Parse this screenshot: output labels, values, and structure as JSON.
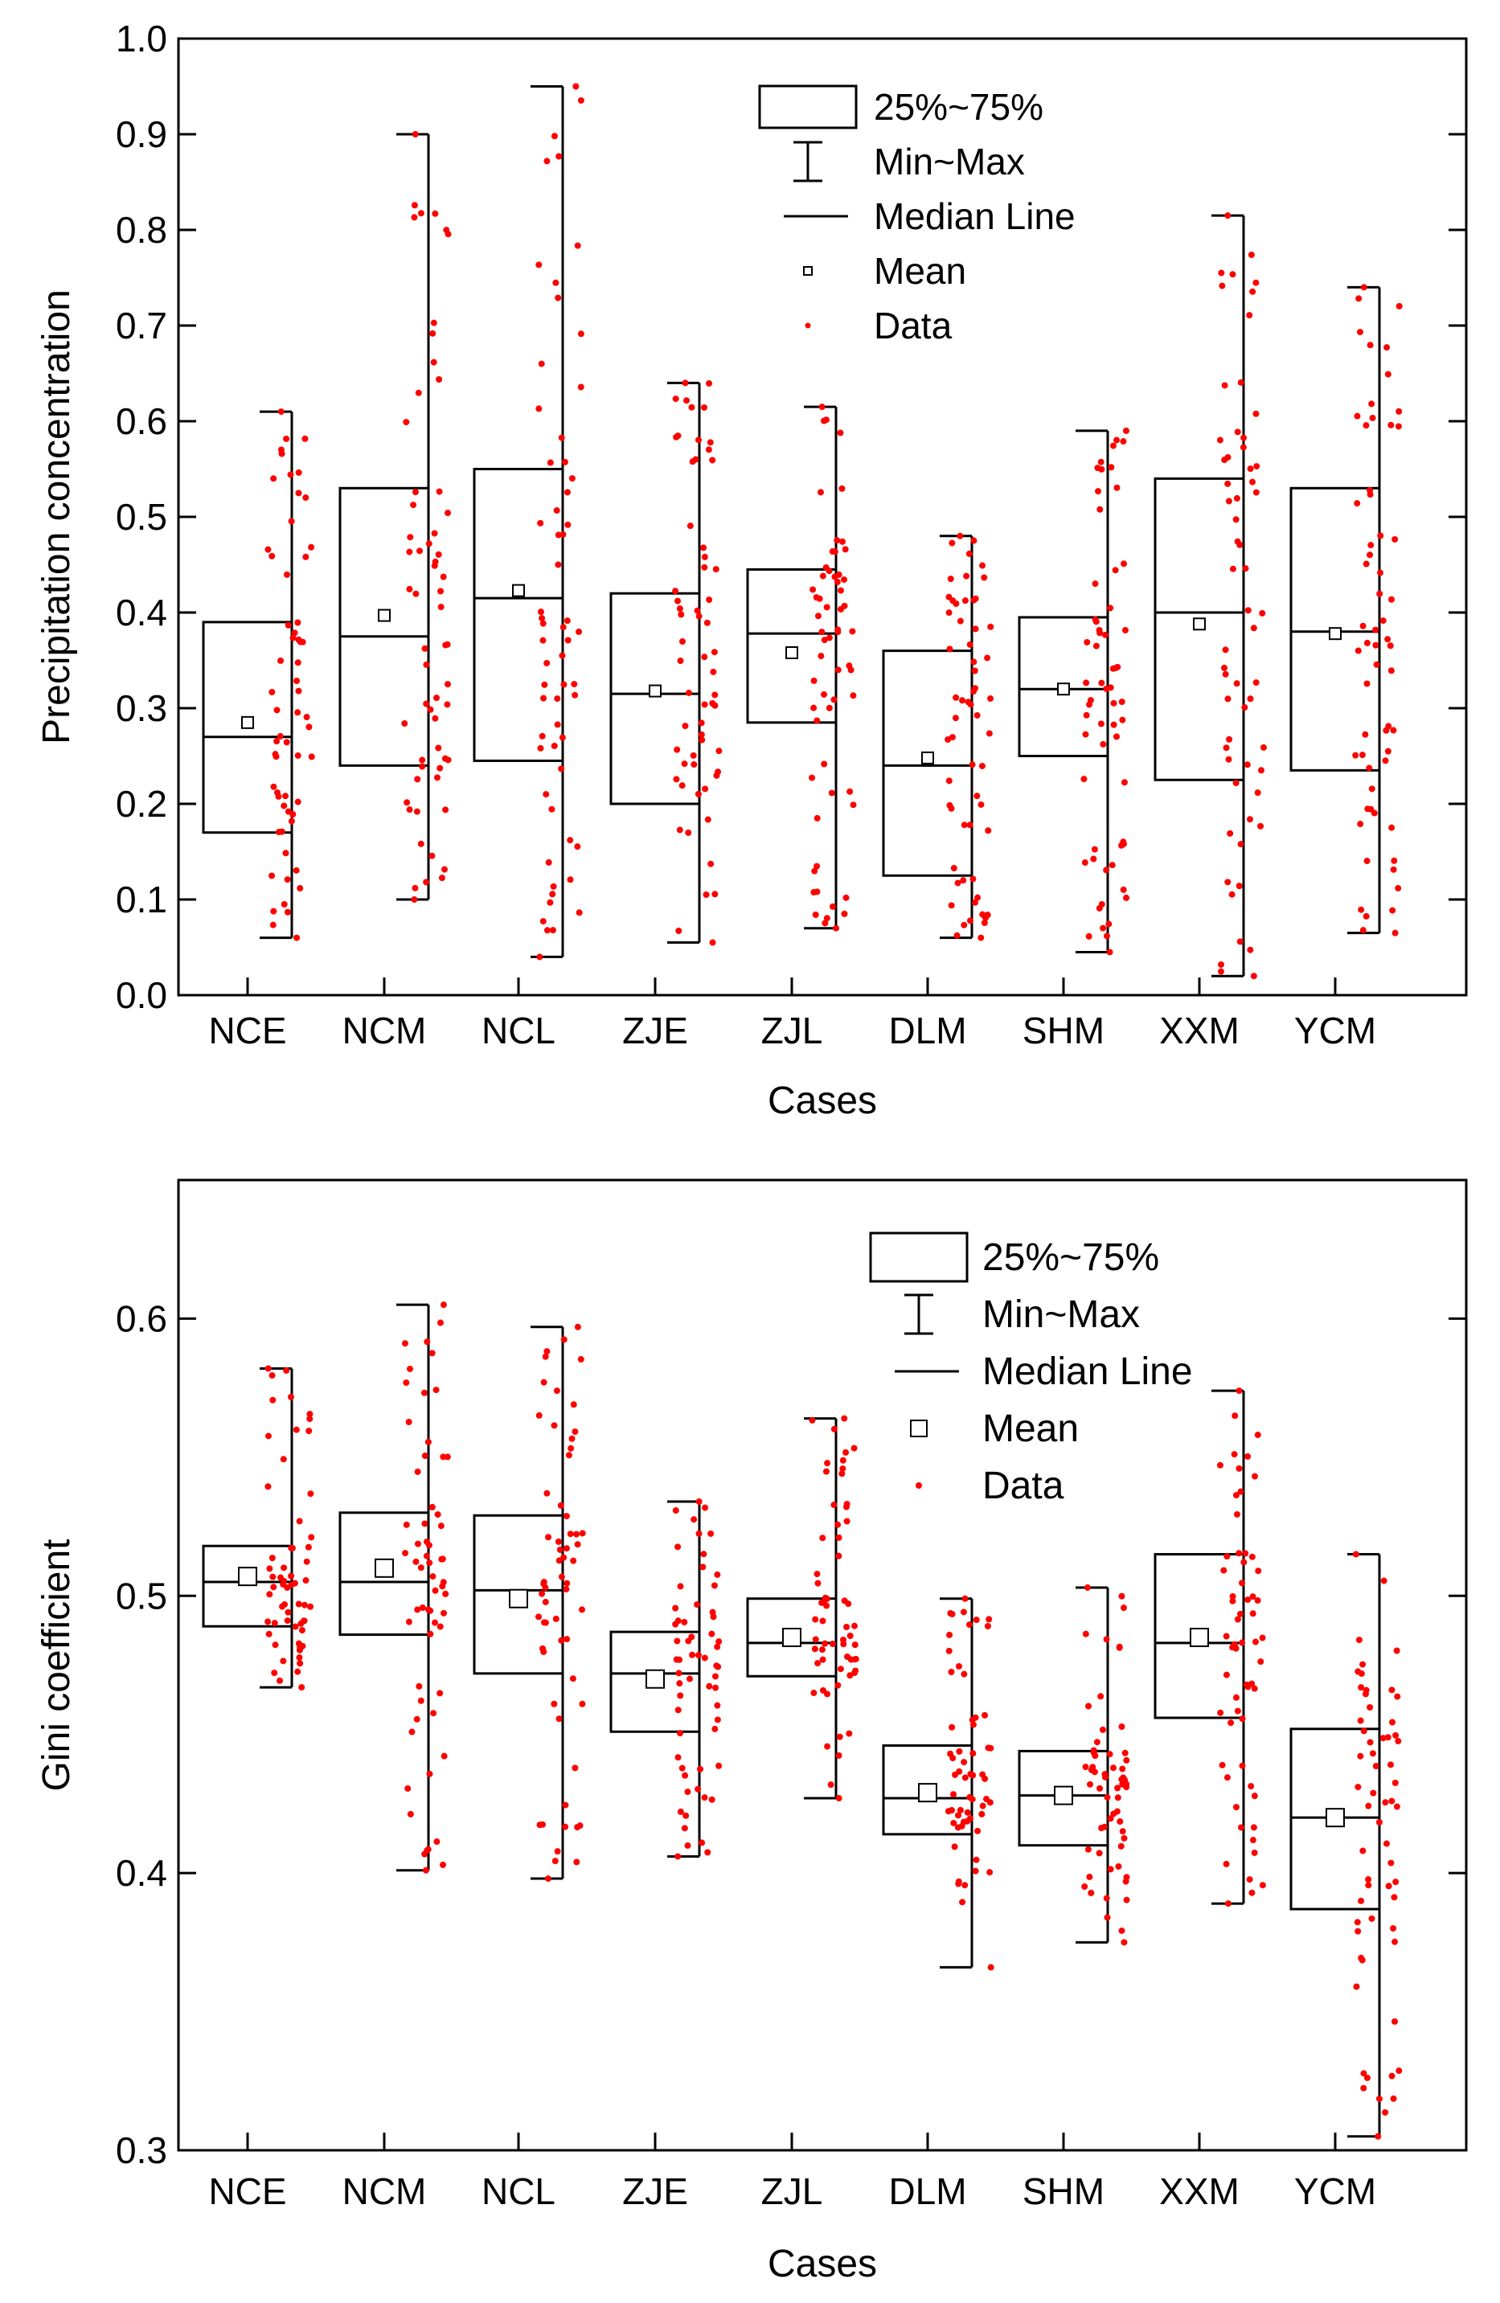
{
  "chart_data": [
    {
      "type": "box",
      "title": "",
      "xlabel": "Cases",
      "ylabel": "Precipitation concentration",
      "ylim": [
        0.0,
        1.0
      ],
      "yticks": [
        "0.0",
        "0.1",
        "0.2",
        "0.3",
        "0.4",
        "0.5",
        "0.6",
        "0.7",
        "0.8",
        "0.9",
        "1.0"
      ],
      "ytick_values": [
        0.0,
        0.1,
        0.2,
        0.3,
        0.4,
        0.5,
        0.6,
        0.7,
        0.8,
        0.9,
        1.0
      ],
      "legend": [
        "25%~75%",
        "Min~Max",
        "Median Line",
        "Mean",
        "Data"
      ],
      "legend_placement": "top-center",
      "categories": [
        "NCE",
        "NCM",
        "NCL",
        "ZJE",
        "ZJL",
        "DLM",
        "SHM",
        "XXM",
        "YCM"
      ],
      "stats": [
        {
          "min": 0.06,
          "q1": 0.17,
          "median": 0.27,
          "mean": 0.285,
          "q3": 0.39,
          "max": 0.61
        },
        {
          "min": 0.1,
          "q1": 0.24,
          "median": 0.375,
          "mean": 0.397,
          "q3": 0.53,
          "max": 0.9
        },
        {
          "min": 0.04,
          "q1": 0.245,
          "median": 0.415,
          "mean": 0.423,
          "q3": 0.55,
          "max": 0.95
        },
        {
          "min": 0.055,
          "q1": 0.2,
          "median": 0.315,
          "mean": 0.318,
          "q3": 0.42,
          "max": 0.64
        },
        {
          "min": 0.07,
          "q1": 0.285,
          "median": 0.378,
          "mean": 0.358,
          "q3": 0.445,
          "max": 0.615
        },
        {
          "min": 0.06,
          "q1": 0.125,
          "median": 0.24,
          "mean": 0.248,
          "q3": 0.36,
          "max": 0.48
        },
        {
          "min": 0.045,
          "q1": 0.25,
          "median": 0.32,
          "mean": 0.32,
          "q3": 0.395,
          "max": 0.59
        },
        {
          "min": 0.02,
          "q1": 0.225,
          "median": 0.4,
          "mean": 0.388,
          "q3": 0.54,
          "max": 0.815
        },
        {
          "min": 0.065,
          "q1": 0.235,
          "median": 0.38,
          "mean": 0.378,
          "q3": 0.53,
          "max": 0.74
        }
      ],
      "points_per_case": 60,
      "point_color": "#ff0000"
    },
    {
      "type": "box",
      "title": "",
      "xlabel": "Cases",
      "ylabel": "Gini coefficient",
      "ylim": [
        0.3,
        0.65
      ],
      "yticks": [
        "0.3",
        "0.4",
        "0.5",
        "0.6"
      ],
      "ytick_values": [
        0.3,
        0.4,
        0.5,
        0.6
      ],
      "legend": [
        "25%~75%",
        "Min~Max",
        "Median Line",
        "Mean",
        "Data"
      ],
      "legend_placement": "top-center",
      "categories": [
        "NCE",
        "NCM",
        "NCL",
        "ZJE",
        "ZJL",
        "DLM",
        "SHM",
        "XXM",
        "YCM"
      ],
      "stats": [
        {
          "min": 0.467,
          "q1": 0.489,
          "median": 0.505,
          "mean": 0.507,
          "q3": 0.518,
          "max": 0.582
        },
        {
          "min": 0.401,
          "q1": 0.486,
          "median": 0.505,
          "mean": 0.51,
          "q3": 0.53,
          "max": 0.605
        },
        {
          "min": 0.398,
          "q1": 0.472,
          "median": 0.502,
          "mean": 0.499,
          "q3": 0.529,
          "max": 0.597
        },
        {
          "min": 0.406,
          "q1": 0.451,
          "median": 0.472,
          "mean": 0.47,
          "q3": 0.487,
          "max": 0.534
        },
        {
          "min": 0.427,
          "q1": 0.471,
          "median": 0.483,
          "mean": 0.485,
          "q3": 0.499,
          "max": 0.564
        },
        {
          "min": 0.366,
          "q1": 0.414,
          "median": 0.427,
          "mean": 0.429,
          "q3": 0.446,
          "max": 0.499
        },
        {
          "min": 0.375,
          "q1": 0.41,
          "median": 0.428,
          "mean": 0.428,
          "q3": 0.444,
          "max": 0.503
        },
        {
          "min": 0.389,
          "q1": 0.456,
          "median": 0.483,
          "mean": 0.485,
          "q3": 0.515,
          "max": 0.574
        },
        {
          "min": 0.305,
          "q1": 0.387,
          "median": 0.42,
          "mean": 0.42,
          "q3": 0.452,
          "max": 0.515
        }
      ],
      "points_per_case": 60,
      "point_color": "#ff0000"
    }
  ]
}
